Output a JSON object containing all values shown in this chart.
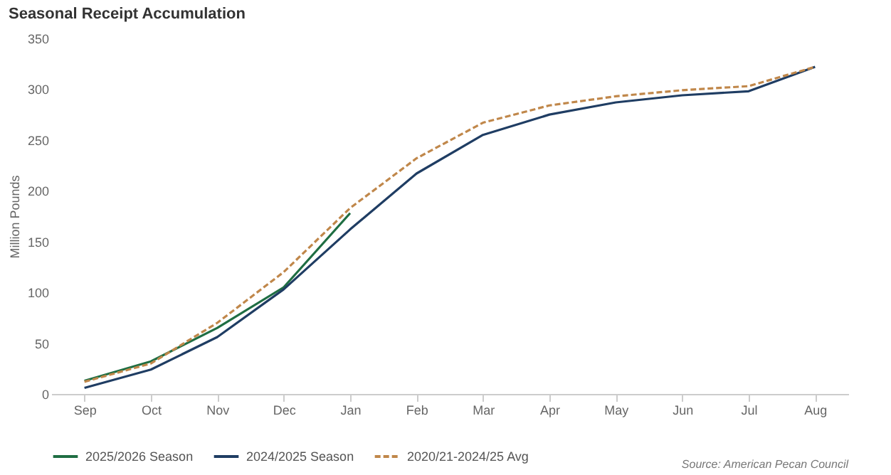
{
  "chart_data": {
    "type": "line",
    "title": "Seasonal Receipt Accumulation",
    "ylabel": "Million Pounds",
    "categories": [
      "Sep",
      "Oct",
      "Nov",
      "Dec",
      "Jan",
      "Feb",
      "Mar",
      "Apr",
      "May",
      "Jun",
      "Jul",
      "Aug"
    ],
    "series": [
      {
        "name": "2025/2026 Season",
        "color": "#1f6e43",
        "line_style": "solid",
        "values": [
          13,
          32,
          65,
          105,
          178,
          null,
          null,
          null,
          null,
          null,
          null,
          null
        ]
      },
      {
        "name": "2024/2025 Season",
        "color": "#1f3d63",
        "line_style": "solid",
        "values": [
          6,
          24,
          56,
          103,
          162,
          217,
          255,
          275,
          287,
          294,
          298,
          322
        ]
      },
      {
        "name": "2020/21-2024/25 Avg",
        "color": "#c0874a",
        "line_style": "dashed",
        "values": [
          12,
          30,
          70,
          120,
          183,
          232,
          267,
          284,
          293,
          299,
          303,
          322
        ]
      }
    ],
    "ylim": [
      0,
      350
    ],
    "yticks": [
      0,
      50,
      100,
      150,
      200,
      250,
      300,
      350
    ],
    "grid": false,
    "legend": "bottom",
    "marker": "none",
    "annotations": [
      "Source: American Pecan Council"
    ]
  }
}
